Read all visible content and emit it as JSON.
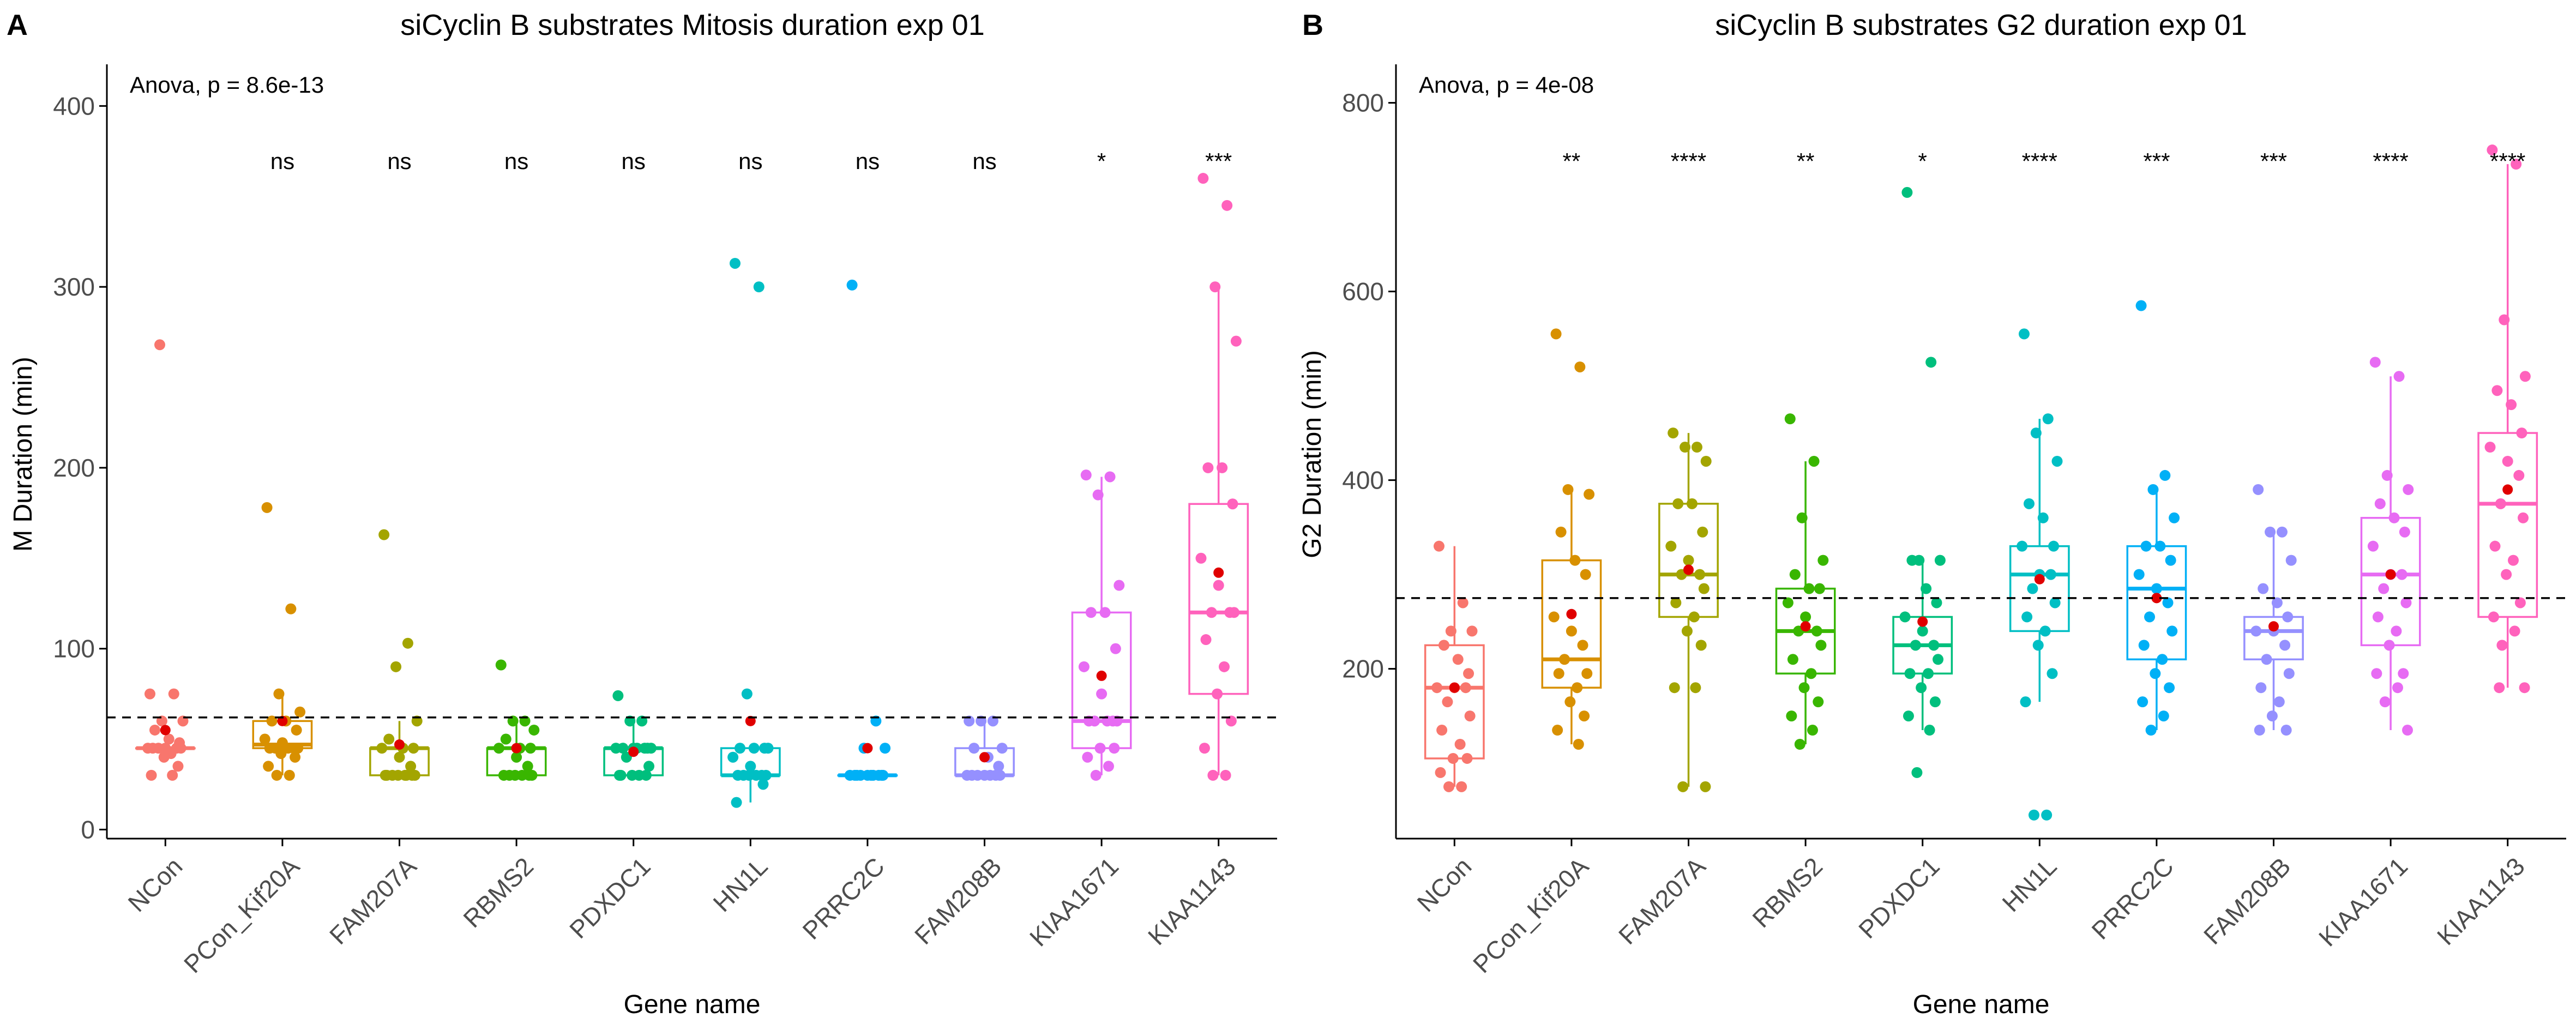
{
  "colors": {
    "NCon": "#F8766D",
    "PCon_Kif20A": "#D89000",
    "FAM207A": "#A3A500",
    "RBMS2": "#39B600",
    "PDXDC1": "#00BF7D",
    "HN1L": "#00BFC4",
    "PRRC2C": "#00B0F6",
    "FAM208B": "#9590FF",
    "KIAA1671": "#E76BF3",
    "KIAA1143": "#FF62BC",
    "mean_point": "#E00000",
    "reference_line": "#000000"
  },
  "chart_data": [
    {
      "type": "box",
      "panel_label": "A",
      "title": "siCyclin B substrates Mitosis duration exp 01",
      "xlabel": "Gene name",
      "ylabel": "M Duration (min)",
      "ylim": [
        -5,
        420
      ],
      "yticks": [
        0,
        100,
        200,
        300,
        400
      ],
      "grid": false,
      "legend": "none",
      "anova_label": "Anova, p = 8.6e-13",
      "reference_line": 62,
      "categories": [
        "NCon",
        "PCon_Kif20A",
        "FAM207A",
        "RBMS2",
        "PDXDC1",
        "HN1L",
        "PRRC2C",
        "FAM208B",
        "KIAA1671",
        "KIAA1143"
      ],
      "significance": [
        "",
        "ns",
        "ns",
        "ns",
        "ns",
        "ns",
        "ns",
        "ns",
        "*",
        "***"
      ],
      "boxes": [
        {
          "min": 45,
          "q1": 45,
          "median": 45,
          "q3": 45,
          "max": 45,
          "mean": 55
        },
        {
          "min": 30,
          "q1": 45,
          "median": 47,
          "q3": 60,
          "max": 75,
          "mean": 60
        },
        {
          "min": 28,
          "q1": 30,
          "median": 45,
          "q3": 45,
          "max": 60,
          "mean": 47
        },
        {
          "min": 30,
          "q1": 30,
          "median": 45,
          "q3": 45,
          "max": 60,
          "mean": 45
        },
        {
          "min": 30,
          "q1": 30,
          "median": 45,
          "q3": 45,
          "max": 60,
          "mean": 43
        },
        {
          "min": 15,
          "q1": 30,
          "median": 30,
          "q3": 45,
          "max": 45,
          "mean": 60
        },
        {
          "min": 30,
          "q1": 30,
          "median": 30,
          "q3": 30,
          "max": 30,
          "mean": 45
        },
        {
          "min": 30,
          "q1": 30,
          "median": 30,
          "q3": 45,
          "max": 60,
          "mean": 40
        },
        {
          "min": 30,
          "q1": 45,
          "median": 60,
          "q3": 120,
          "max": 195,
          "mean": 85
        },
        {
          "min": 30,
          "q1": 75,
          "median": 120,
          "q3": 180,
          "max": 300,
          "mean": 142
        }
      ],
      "points": [
        [
          75,
          75,
          60,
          60,
          55,
          50,
          48,
          45,
          45,
          45,
          45,
          45,
          45,
          42,
          40,
          35,
          30,
          30,
          268
        ],
        [
          178,
          122,
          75,
          65,
          60,
          60,
          55,
          50,
          48,
          45,
          45,
          45,
          45,
          45,
          42,
          40,
          35,
          30,
          30
        ],
        [
          163,
          103,
          90,
          60,
          50,
          45,
          45,
          45,
          40,
          35,
          30,
          30,
          30,
          30,
          30,
          30,
          30,
          30
        ],
        [
          91,
          60,
          60,
          55,
          50,
          45,
          45,
          45,
          40,
          35,
          30,
          30,
          30,
          30,
          30,
          30
        ],
        [
          74,
          60,
          60,
          45,
          45,
          45,
          45,
          45,
          45,
          45,
          40,
          35,
          30,
          30,
          30,
          30,
          30
        ],
        [
          313,
          300,
          75,
          45,
          45,
          45,
          45,
          40,
          35,
          30,
          30,
          30,
          30,
          30,
          30,
          25,
          15
        ],
        [
          301,
          60,
          45,
          45,
          30,
          30,
          30,
          30,
          30,
          30,
          30,
          30,
          30,
          30
        ],
        [
          60,
          60,
          60,
          45,
          45,
          40,
          35,
          30,
          30,
          30,
          30,
          30,
          30,
          30
        ],
        [
          196,
          195,
          185,
          135,
          120,
          120,
          100,
          90,
          75,
          60,
          60,
          60,
          60,
          60,
          45,
          45,
          40,
          35,
          30
        ],
        [
          360,
          345,
          300,
          270,
          200,
          200,
          180,
          150,
          135,
          120,
          120,
          120,
          105,
          90,
          75,
          60,
          45,
          30,
          30
        ]
      ]
    },
    {
      "type": "box",
      "panel_label": "B",
      "title": "siCyclin B substrates G2 duration exp 01",
      "xlabel": "Gene name",
      "ylabel": "G2 Duration (min)",
      "ylim": [
        20,
        835
      ],
      "yticks": [
        200,
        400,
        600,
        800
      ],
      "grid": false,
      "legend": "none",
      "anova_label": "Anova, p = 4e-08",
      "reference_line": 275,
      "categories": [
        "NCon",
        "PCon_Kif20A",
        "FAM207A",
        "RBMS2",
        "PDXDC1",
        "HN1L",
        "PRRC2C",
        "FAM208B",
        "KIAA1671",
        "KIAA1143"
      ],
      "significance": [
        "",
        "**",
        "****",
        "**",
        "*",
        "****",
        "***",
        "***",
        "****",
        "****"
      ],
      "boxes": [
        {
          "min": 75,
          "q1": 105,
          "median": 180,
          "q3": 225,
          "max": 330,
          "mean": 180
        },
        {
          "min": 120,
          "q1": 180,
          "median": 210,
          "q3": 315,
          "max": 390,
          "mean": 258
        },
        {
          "min": 75,
          "q1": 255,
          "median": 300,
          "q3": 375,
          "max": 450,
          "mean": 305
        },
        {
          "min": 120,
          "q1": 195,
          "median": 240,
          "q3": 285,
          "max": 420,
          "mean": 245
        },
        {
          "min": 135,
          "q1": 195,
          "median": 225,
          "q3": 255,
          "max": 315,
          "mean": 250
        },
        {
          "min": 165,
          "q1": 240,
          "median": 300,
          "q3": 330,
          "max": 465,
          "mean": 295
        },
        {
          "min": 135,
          "q1": 210,
          "median": 285,
          "q3": 330,
          "max": 390,
          "mean": 275
        },
        {
          "min": 135,
          "q1": 210,
          "median": 240,
          "q3": 255,
          "max": 345,
          "mean": 245
        },
        {
          "min": 135,
          "q1": 225,
          "median": 300,
          "q3": 360,
          "max": 510,
          "mean": 300
        },
        {
          "min": 180,
          "q1": 255,
          "median": 375,
          "q3": 450,
          "max": 735,
          "mean": 390
        }
      ],
      "points": [
        [
          330,
          270,
          240,
          240,
          225,
          210,
          195,
          180,
          180,
          180,
          165,
          150,
          135,
          120,
          105,
          105,
          90,
          75,
          75
        ],
        [
          555,
          520,
          390,
          385,
          345,
          315,
          300,
          255,
          240,
          225,
          210,
          195,
          195,
          180,
          165,
          150,
          135,
          120
        ],
        [
          450,
          435,
          435,
          420,
          375,
          375,
          345,
          330,
          315,
          300,
          300,
          285,
          270,
          255,
          240,
          225,
          180,
          180,
          75,
          75
        ],
        [
          465,
          420,
          360,
          315,
          300,
          285,
          285,
          270,
          255,
          240,
          240,
          225,
          210,
          195,
          180,
          165,
          150,
          135,
          120
        ],
        [
          705,
          525,
          315,
          315,
          315,
          285,
          270,
          255,
          240,
          225,
          225,
          210,
          195,
          195,
          180,
          165,
          150,
          135,
          90
        ],
        [
          555,
          465,
          450,
          420,
          375,
          360,
          330,
          330,
          300,
          300,
          285,
          270,
          255,
          240,
          225,
          195,
          165,
          45,
          45
        ],
        [
          585,
          405,
          390,
          360,
          330,
          330,
          315,
          300,
          285,
          270,
          255,
          240,
          225,
          210,
          195,
          180,
          165,
          150,
          135
        ],
        [
          390,
          345,
          345,
          315,
          285,
          270,
          255,
          240,
          240,
          225,
          210,
          195,
          180,
          165,
          150,
          135,
          135
        ],
        [
          525,
          510,
          405,
          390,
          375,
          360,
          345,
          330,
          300,
          300,
          285,
          270,
          255,
          240,
          225,
          195,
          195,
          180,
          165,
          135
        ],
        [
          750,
          735,
          570,
          510,
          495,
          480,
          450,
          435,
          420,
          405,
          375,
          360,
          330,
          315,
          300,
          270,
          255,
          240,
          225,
          180,
          180
        ]
      ]
    }
  ]
}
